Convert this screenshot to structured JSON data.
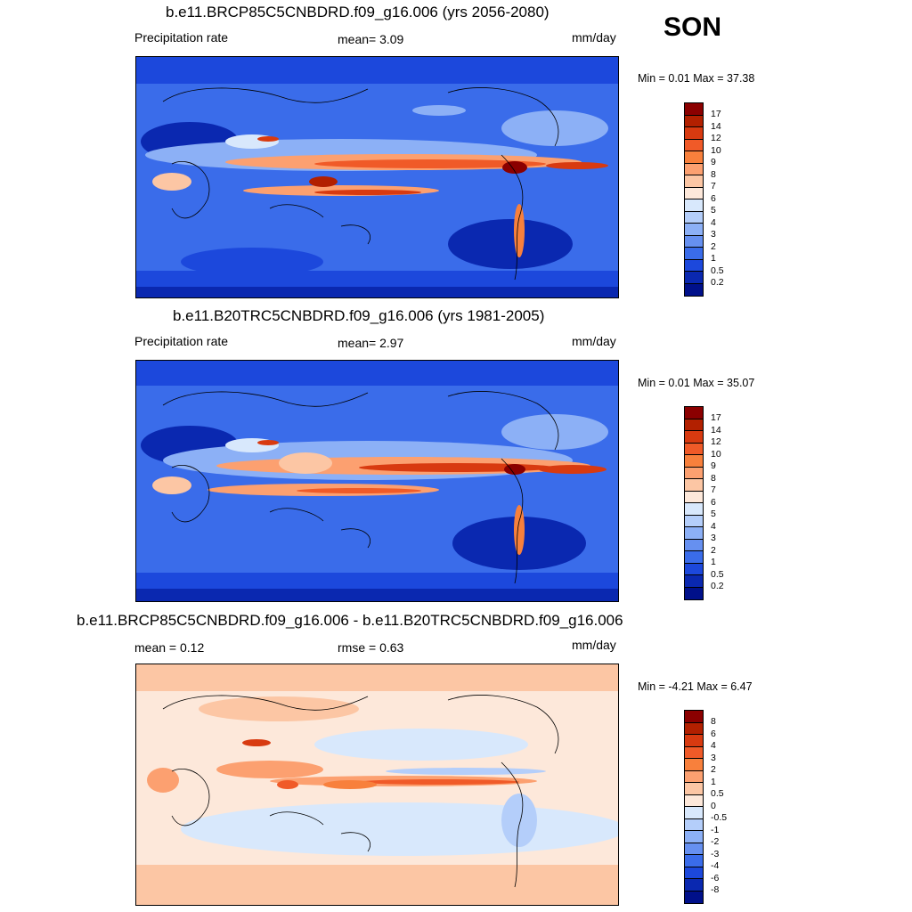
{
  "season": "SON",
  "panels": [
    {
      "title": "b.e11.BRCP85C5CNBDRD.f09_g16.006 (yrs 2056-2080)",
      "left_label": "Precipitation rate",
      "center_label": "mean=   3.09",
      "units": "mm/day",
      "minmax": "Min =   0.01 Max =  37.38",
      "levels": [
        "17",
        "14",
        "12",
        "10",
        "9",
        "8",
        "7",
        "6",
        "5",
        "4",
        "3",
        "2",
        "1",
        "0.5",
        "0.2"
      ],
      "colors": [
        "#8b0000",
        "#b22000",
        "#d83a10",
        "#f05a28",
        "#f8803c",
        "#fca070",
        "#fcc6a4",
        "#fde8da",
        "#d8e8fc",
        "#b4cefa",
        "#8cb0f6",
        "#6690f0",
        "#3a6cea",
        "#1c48dc",
        "#0a28b0",
        "#00108a"
      ]
    },
    {
      "title": "b.e11.B20TRC5CNBDRD.f09_g16.006 (yrs 1981-2005)",
      "left_label": "Precipitation rate",
      "center_label": "mean=   2.97",
      "units": "mm/day",
      "minmax": "Min =   0.01 Max =  35.07",
      "levels": [
        "17",
        "14",
        "12",
        "10",
        "9",
        "8",
        "7",
        "6",
        "5",
        "4",
        "3",
        "2",
        "1",
        "0.5",
        "0.2"
      ],
      "colors": [
        "#8b0000",
        "#b22000",
        "#d83a10",
        "#f05a28",
        "#f8803c",
        "#fca070",
        "#fcc6a4",
        "#fde8da",
        "#d8e8fc",
        "#b4cefa",
        "#8cb0f6",
        "#6690f0",
        "#3a6cea",
        "#1c48dc",
        "#0a28b0",
        "#00108a"
      ]
    },
    {
      "title": "b.e11.BRCP85C5CNBDRD.f09_g16.006 - b.e11.B20TRC5CNBDRD.f09_g16.006",
      "left_label": "mean =   0.12",
      "center_label": "rmse =   0.63",
      "units": "mm/day",
      "minmax": "Min =  -4.21 Max =   6.47",
      "levels": [
        "8",
        "6",
        "4",
        "3",
        "2",
        "1",
        "0.5",
        "0",
        "-0.5",
        "-1",
        "-2",
        "-3",
        "-4",
        "-6",
        "-8"
      ],
      "colors": [
        "#8b0000",
        "#b22000",
        "#d83a10",
        "#f05a28",
        "#f8803c",
        "#fca070",
        "#fcc6a4",
        "#fde8da",
        "#d8e8fc",
        "#b4cefa",
        "#8cb0f6",
        "#6690f0",
        "#3a6cea",
        "#1c48dc",
        "#0a28b0",
        "#00108a"
      ]
    }
  ]
}
